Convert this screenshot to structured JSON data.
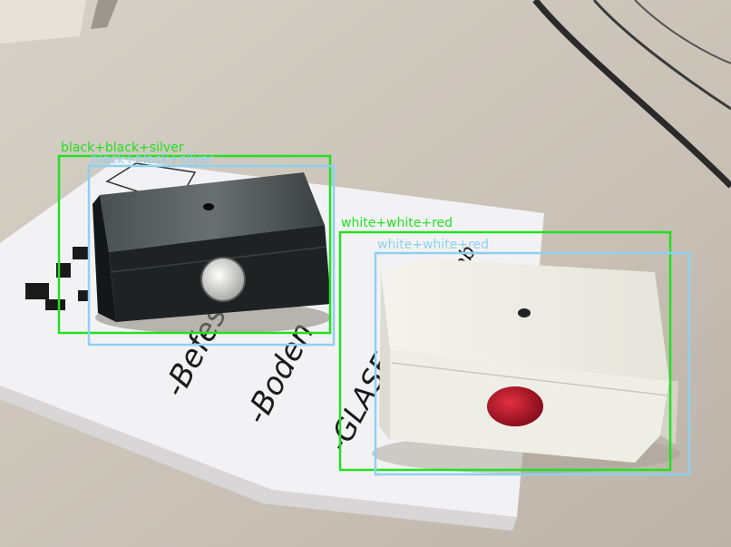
{
  "detections": [
    {
      "label": "black+black+silver",
      "color": "#22e022"
    },
    {
      "label": "black+black+silver",
      "color": "#8fd0f0"
    },
    {
      "label": "white+white+red",
      "color": "#22e022"
    },
    {
      "label": "white+white+red",
      "color": "#8fd0f0"
    }
  ],
  "paper_handwriting": [
    "-Befestig",
    "-Boden",
    "-GLASE",
    "ab"
  ],
  "colors": {
    "table": "#cfc7bd",
    "paper": "#f2f2f4",
    "black_box": "#1e2222",
    "white_box": "#efeee6",
    "silver_button": "#d9d9d6",
    "red_button": "#c0162a",
    "box_green": "#22e022",
    "box_blue": "#8fd0f0"
  }
}
